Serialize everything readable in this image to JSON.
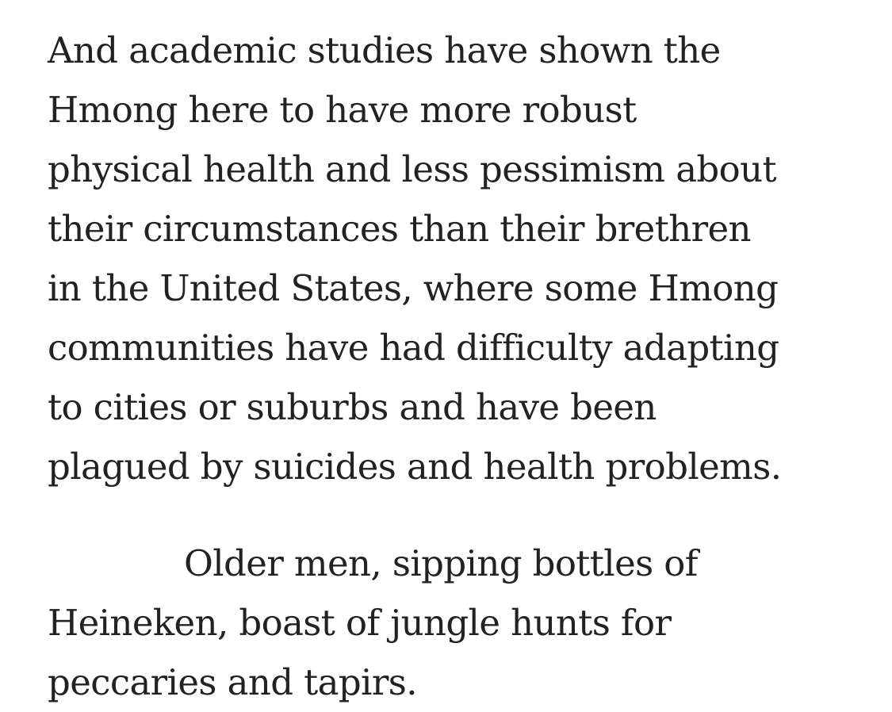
{
  "article": {
    "paragraphs": [
      {
        "lines": [
          "And academic studies have shown the",
          "Hmong here to have more robust",
          "physical health and less pessimism about",
          "their circumstances than their brethren",
          "in the United States, where some Hmong",
          "communities have had difficulty adapting",
          "to cities or suburbs and have been",
          "plagued by suicides and health problems."
        ]
      },
      {
        "lines": [
          "Older men, sipping bottles of",
          "Heineken, boast of jungle hunts for",
          "peccaries and tapirs."
        ]
      }
    ]
  }
}
